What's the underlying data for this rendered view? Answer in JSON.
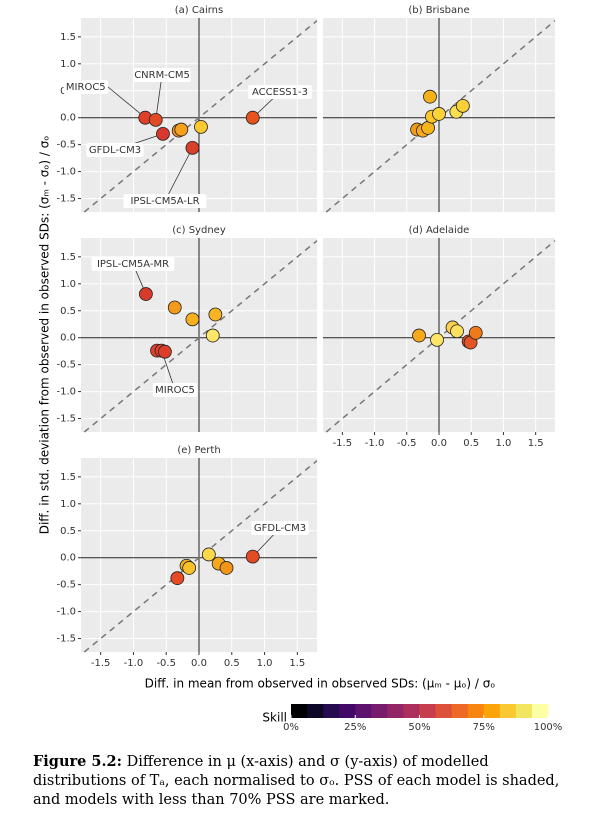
{
  "axes": {
    "xlabel": "Diff. in mean from observed in observed SDs: (μₘ - μₒ) / σₒ",
    "ylabel": "Diff. in std. deviation from observed in observed SDs: (σₘ - σₒ) / σₒ",
    "xlim": [
      -1.8,
      1.8
    ],
    "ylim": [
      -1.75,
      1.85
    ],
    "xticks": [
      {
        "value": -1.5,
        "label": "-1.5"
      },
      {
        "value": -1,
        "label": "-1.0"
      },
      {
        "value": -0.5,
        "label": "-0.5"
      },
      {
        "value": 0,
        "label": "0.0"
      },
      {
        "value": 0.5,
        "label": "0.5"
      },
      {
        "value": 1,
        "label": "1.0"
      },
      {
        "value": 1.5,
        "label": "1.5"
      }
    ],
    "yticks": [
      {
        "value": -1.5,
        "label": "-1.5"
      },
      {
        "value": -1,
        "label": "-1.0"
      },
      {
        "value": -0.5,
        "label": "-0.5"
      },
      {
        "value": 0,
        "label": "0.0"
      },
      {
        "value": 0.5,
        "label": "0.5"
      },
      {
        "value": 1,
        "label": "1.0"
      },
      {
        "value": 1.5,
        "label": "1.5"
      }
    ],
    "grid": true
  },
  "chart_data": [
    {
      "type": "scatter",
      "title": "(a) Cairns",
      "x": [
        -0.82,
        -0.66,
        -0.55,
        -0.31,
        -0.27,
        0.03,
        -0.1,
        0.82
      ],
      "y": [
        0.0,
        -0.04,
        -0.3,
        -0.24,
        -0.22,
        -0.17,
        -0.56,
        0.0
      ],
      "colors": [
        "#e0402a",
        "#e24a25",
        "#d8382d",
        "#f28c1c",
        "#f5a01a",
        "#fdc830",
        "#d9402a",
        "#e8521e"
      ],
      "annotations": [
        "MIROC5",
        "CNRM-CM5",
        "ACCESS1-3",
        "GFDL-CM3",
        "IPSL-CM5A-LR"
      ]
    },
    {
      "type": "scatter",
      "title": "(b) Brisbane",
      "x": [
        -0.14,
        -0.34,
        -0.25,
        -0.17,
        -0.11,
        0.0,
        0.27,
        0.37
      ],
      "y": [
        0.39,
        -0.22,
        -0.24,
        -0.19,
        0.02,
        0.07,
        0.11,
        0.22
      ],
      "colors": [
        "#f7b21a",
        "#f59a18",
        "#f7a81b",
        "#f6b41c",
        "#fac62a",
        "#fcd23a",
        "#fde050",
        "#fbd037"
      ],
      "annotations": []
    },
    {
      "type": "scatter",
      "title": "(c) Sydney",
      "x": [
        -0.81,
        -0.37,
        -0.1,
        0.25,
        0.21,
        -0.64,
        -0.57,
        -0.52
      ],
      "y": [
        0.81,
        0.56,
        0.34,
        0.43,
        0.04,
        -0.24,
        -0.24,
        -0.26
      ],
      "colors": [
        "#d83a2b",
        "#f39a1a",
        "#f8b01e",
        "#f8b422",
        "#fde668",
        "#e0402a",
        "#e2452a",
        "#dc3e2b"
      ],
      "annotations": [
        "IPSL-CM5A-MR",
        "MIROC5"
      ]
    },
    {
      "type": "scatter",
      "title": "(d) Adelaide",
      "x": [
        -0.31,
        -0.03,
        0.21,
        0.28,
        0.46,
        0.49,
        0.57
      ],
      "y": [
        0.04,
        -0.04,
        0.19,
        0.12,
        -0.07,
        -0.09,
        0.09
      ],
      "colors": [
        "#f7a81b",
        "#fde566",
        "#fbd04a",
        "#fde060",
        "#e8501e",
        "#e45526",
        "#ef7a1a"
      ],
      "annotations": []
    },
    {
      "type": "scatter",
      "title": "(e) Perth",
      "x": [
        0.15,
        -0.19,
        -0.15,
        0.3,
        0.42,
        -0.33,
        0.82
      ],
      "y": [
        0.06,
        -0.15,
        -0.19,
        -0.11,
        -0.19,
        -0.38,
        0.02
      ],
      "colors": [
        "#fcd84a",
        "#f5b21b",
        "#f8c12a",
        "#f6a81b",
        "#f2941a",
        "#e64a22",
        "#e44a24"
      ],
      "annotations": [
        "GFDL-CM3"
      ]
    }
  ],
  "legend": {
    "title": "Skill",
    "lim": [
      0,
      100
    ],
    "colors": [
      "#000004",
      "#0c0826",
      "#240c4f",
      "#420a68",
      "#5d126e",
      "#781c6d",
      "#932667",
      "#ad305c",
      "#c73e4c",
      "#dd513a",
      "#ed6925",
      "#f8850f",
      "#fba40a",
      "#f9c932",
      "#f2e661",
      "#fcffa4"
    ],
    "ticks": [
      {
        "value": 0,
        "label": "0%"
      },
      {
        "value": 25,
        "label": "25%"
      },
      {
        "value": 50,
        "label": "50%"
      },
      {
        "value": 75,
        "label": "75%"
      },
      {
        "value": 100,
        "label": "100%"
      }
    ]
  },
  "caption": {
    "label": "Figure 5.2:",
    "text": "Difference in μ (x-axis) and σ (y-axis) of modelled distributions of Tₐ, each normalised to σₒ. PSS of each model is shaded, and models with less than 70% PSS are marked."
  }
}
